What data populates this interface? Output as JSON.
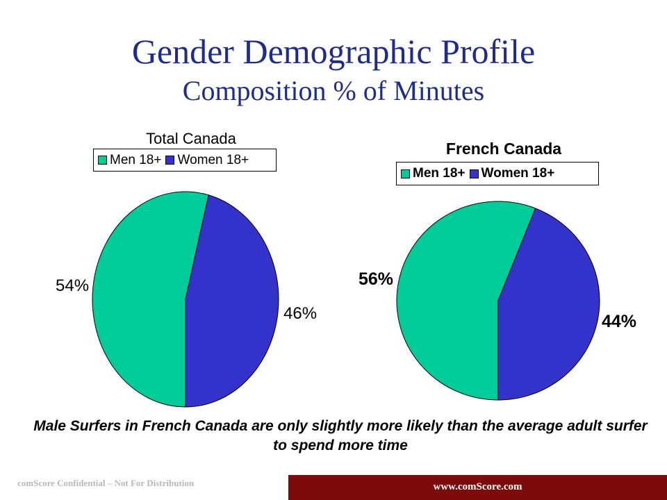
{
  "slide": {
    "title": "Gender Demographic Profile",
    "subtitle": "Composition % of Minutes",
    "caption": "Male Surfers in French Canada are only slightly more likely than the average adult surfer to spend more time",
    "footer_confidential": "comScore Confidential – Not For Distribution",
    "footer_url": "www.comScore.com"
  },
  "chart_data": [
    {
      "type": "pie",
      "title": "Total Canada",
      "categories": [
        "Men 18+",
        "Women 18+"
      ],
      "values": [
        54,
        46
      ],
      "labels": [
        "54%",
        "46%"
      ],
      "colors": [
        "#00cc99",
        "#3333cc"
      ],
      "legend": "top"
    },
    {
      "type": "pie",
      "title": "French Canada",
      "categories": [
        "Men 18+",
        "Women 18+"
      ],
      "values": [
        56,
        44
      ],
      "labels": [
        "56%",
        "44%"
      ],
      "colors": [
        "#00cc99",
        "#3333cc"
      ],
      "legend": "top"
    }
  ]
}
